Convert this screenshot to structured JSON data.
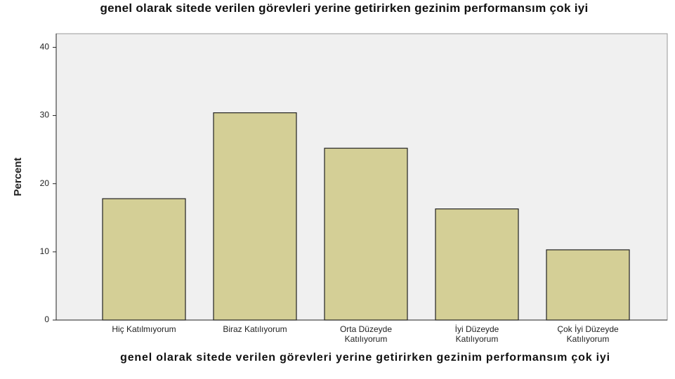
{
  "chart_data": {
    "type": "bar",
    "title": "genel olarak sitede verilen görevleri yerine getirirken gezinim performansım çok iyi",
    "x_label": "genel olarak sitede verilen görevleri yerine getirirken gezinim performansım çok iyi",
    "y_label": "Percent",
    "categories": [
      "Hiç Katılmıyorum",
      "Biraz Katılıyorum",
      "Orta Düzeyde Katılıyorum",
      "İyi Düzeyde Katılıyorum",
      "Çok İyi Düzeyde Katılıyorum"
    ],
    "values": [
      17.8,
      30.4,
      25.2,
      16.3,
      10.3
    ],
    "color": "#d4cf96",
    "ylim": [
      0,
      42
    ],
    "yticks": [
      0,
      10,
      20,
      30,
      40
    ],
    "grid": false
  }
}
